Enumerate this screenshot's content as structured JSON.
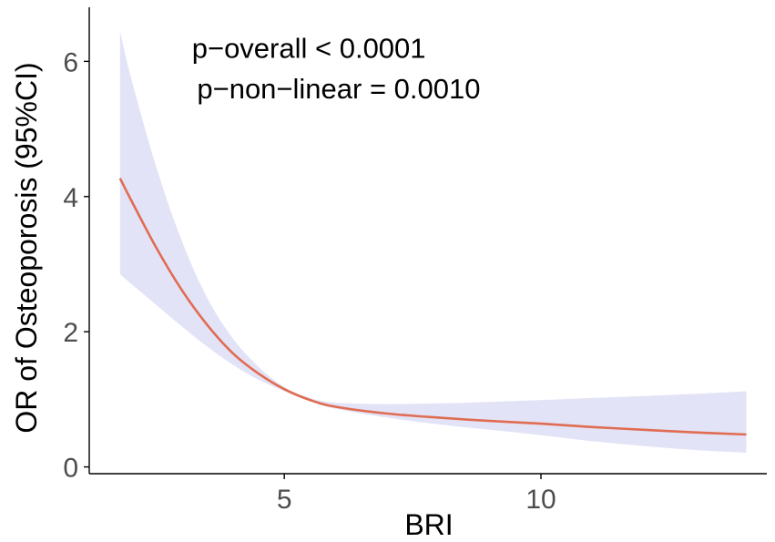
{
  "chart_data": {
    "type": "line",
    "title": "",
    "xlabel": "BRI",
    "ylabel": "OR of Osteoporosis (95%CI)",
    "xlim": [
      1.2,
      14.4
    ],
    "ylim": [
      -0.1,
      6.8
    ],
    "x_ticks": [
      {
        "value": 5,
        "label": "5"
      },
      {
        "value": 10,
        "label": "10"
      }
    ],
    "y_ticks": [
      {
        "value": 0,
        "label": "0"
      },
      {
        "value": 2,
        "label": "2"
      },
      {
        "value": 4,
        "label": "4"
      },
      {
        "value": 6,
        "label": "6"
      }
    ],
    "grid": false,
    "annotations": [
      {
        "text": "p−overall < 0.0001",
        "x": 3.2,
        "y": 6.05
      },
      {
        "text": "p−non−linear = 0.0010",
        "x": 3.3,
        "y": 5.45
      }
    ],
    "series": [
      {
        "color": "#e06c52",
        "x": [
          1.8,
          2.0,
          2.5,
          3.0,
          3.5,
          4.0,
          4.5,
          5.0,
          5.5,
          6.0,
          7.0,
          8.0,
          9.0,
          10.0,
          11.0,
          12.0,
          13.0,
          14.0
        ],
        "y": [
          4.27,
          3.97,
          3.25,
          2.62,
          2.1,
          1.68,
          1.38,
          1.15,
          0.99,
          0.89,
          0.79,
          0.73,
          0.68,
          0.64,
          0.59,
          0.55,
          0.51,
          0.48
        ],
        "lower": [
          2.85,
          2.72,
          2.4,
          2.08,
          1.78,
          1.51,
          1.29,
          1.12,
          0.97,
          0.86,
          0.73,
          0.63,
          0.55,
          0.47,
          0.38,
          0.31,
          0.25,
          0.21
        ],
        "upper": [
          6.45,
          5.8,
          4.45,
          3.35,
          2.5,
          1.9,
          1.48,
          1.18,
          1.02,
          0.95,
          0.93,
          0.94,
          0.96,
          0.99,
          1.02,
          1.05,
          1.08,
          1.12
        ]
      }
    ],
    "band_color": "#e3e3f7",
    "axis_color": "#000000"
  }
}
